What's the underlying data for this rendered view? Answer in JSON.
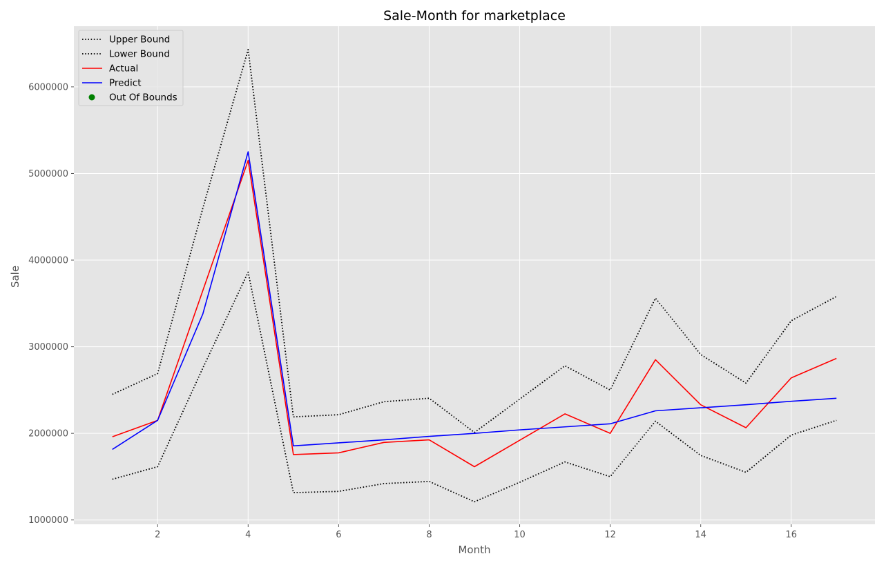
{
  "chart_data": {
    "type": "line",
    "title": "Sale-Month for marketplace",
    "xlabel": "Month",
    "ylabel": "Sale",
    "x": [
      1,
      2,
      3,
      4,
      5,
      6,
      7,
      8,
      9,
      10,
      11,
      12,
      13,
      14,
      15,
      16,
      17
    ],
    "xlim": [
      0.15,
      17.85
    ],
    "ylim": [
      950000,
      6700000
    ],
    "xticks": [
      2,
      4,
      6,
      8,
      10,
      12,
      14,
      16
    ],
    "yticks": [
      1000000,
      2000000,
      3000000,
      4000000,
      5000000,
      6000000
    ],
    "ytick_labels": [
      "1000000",
      "2000000",
      "3000000",
      "4000000",
      "5000000",
      "6000000"
    ],
    "grid": true,
    "legend_position": "upper-left",
    "series": [
      {
        "name": "Upper Bound",
        "color": "#000000",
        "style": "dotted",
        "values": [
          2450000,
          2690000,
          4600000,
          6430000,
          2190000,
          2215000,
          2365000,
          2405000,
          2010000,
          2395000,
          2780000,
          2500000,
          3560000,
          2910000,
          2580000,
          3300000,
          3580000
        ]
      },
      {
        "name": "Lower Bound",
        "color": "#000000",
        "style": "dotted",
        "values": [
          1470000,
          1615000,
          2755000,
          3860000,
          1315000,
          1330000,
          1420000,
          1445000,
          1210000,
          1435000,
          1670000,
          1500000,
          2140000,
          1745000,
          1550000,
          1980000,
          2150000
        ]
      },
      {
        "name": "Actual",
        "color": "#ff0000",
        "style": "solid",
        "values": [
          1960000,
          2150000,
          3650000,
          5150000,
          1755000,
          1775000,
          1895000,
          1925000,
          1615000,
          1920000,
          2225000,
          2000000,
          2850000,
          2330000,
          2065000,
          2640000,
          2865000
        ]
      },
      {
        "name": "Predict",
        "color": "#0000ff",
        "style": "solid",
        "values": [
          1815000,
          2150000,
          3380000,
          5250000,
          1855000,
          1890000,
          1925000,
          1965000,
          2000000,
          2040000,
          2075000,
          2110000,
          2260000,
          2295000,
          2330000,
          2370000,
          2405000
        ]
      },
      {
        "name": "Out Of Bounds",
        "color": "#008000",
        "style": "marker",
        "points": []
      }
    ]
  }
}
